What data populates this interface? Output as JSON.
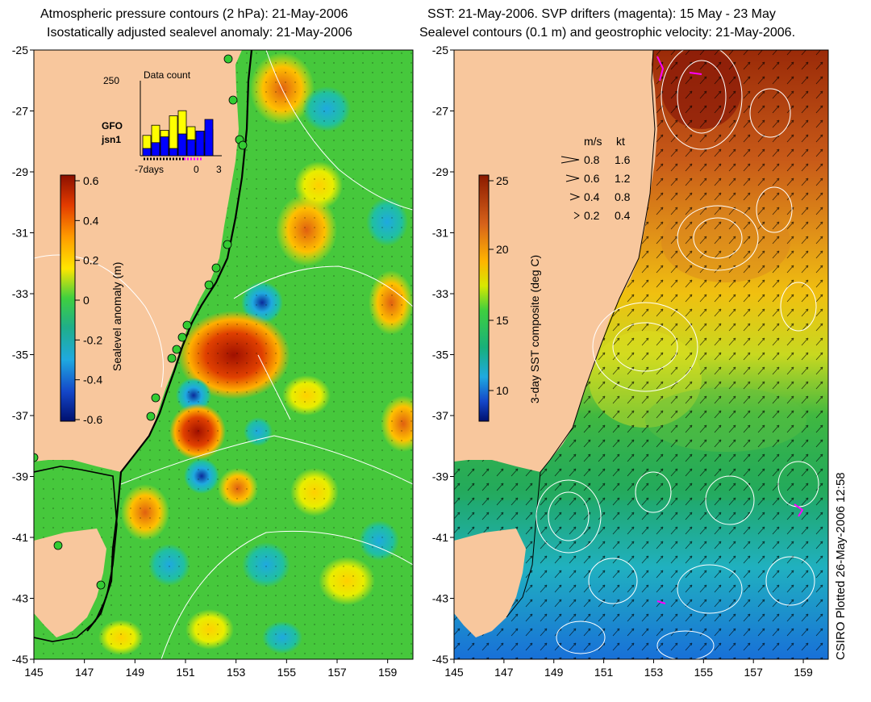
{
  "left_panel": {
    "title_line1": "Atmospheric pressure contours (2 hPa): 21-May-2006",
    "title_line2": "Isostatically adjusted sealevel anomaly: 21-May-2006",
    "colorbar_label": "Sealevel anomaly (m)",
    "colorbar_ticks": [
      "0.6",
      "0.4",
      "0.2",
      "0",
      "-0.2",
      "-0.4",
      "-0.6"
    ],
    "inset": {
      "title": "Data count",
      "max_label": "250",
      "x_labels": [
        "-7days",
        "0",
        "3"
      ],
      "legend": [
        {
          "name": "GFO",
          "color": "#ffff00"
        },
        {
          "name": "jsn1",
          "color": "#0000ff"
        }
      ],
      "yellow_bars": [
        0.28,
        0.42,
        0.35,
        0.55,
        0.62,
        0.4,
        0.18,
        0.36
      ],
      "blue_bars": [
        0.1,
        0.18,
        0.26,
        0.1,
        0.3,
        0.22,
        0.34,
        0.5
      ]
    }
  },
  "right_panel": {
    "title_line1": "SST: 21-May-2006. SVP drifters (magenta): 15 May - 23 May",
    "title_line2": "Sealevel contours (0.1 m) and geostrophic velocity: 21-May-2006.",
    "colorbar_label": "3-day SST composite (deg C)",
    "colorbar_ticks": [
      "25",
      "20",
      "15",
      "10"
    ],
    "velocity_legend": {
      "header_ms": "m/s",
      "header_kt": "kt",
      "rows": [
        {
          "ms": "0.8",
          "kt": "1.6"
        },
        {
          "ms": "0.6",
          "kt": "1.2"
        },
        {
          "ms": "0.4",
          "kt": "0.8"
        },
        {
          "ms": "0.2",
          "kt": "0.4"
        }
      ]
    }
  },
  "axes": {
    "x_ticks": [
      "145",
      "147",
      "149",
      "151",
      "153",
      "155",
      "157",
      "159"
    ],
    "y_ticks": [
      "-25",
      "-27",
      "-29",
      "-31",
      "-33",
      "-35",
      "-37",
      "-39",
      "-41",
      "-43",
      "-45"
    ]
  },
  "credit": "CSIRO Plotted 26-May-2006 12:58",
  "colors": {
    "land": "#f8c79d",
    "sea_green": "#3cc83c",
    "sst_warm": "#b5461f",
    "sst_cool": "#1a9fd8",
    "drifter": "#ff00ff"
  }
}
